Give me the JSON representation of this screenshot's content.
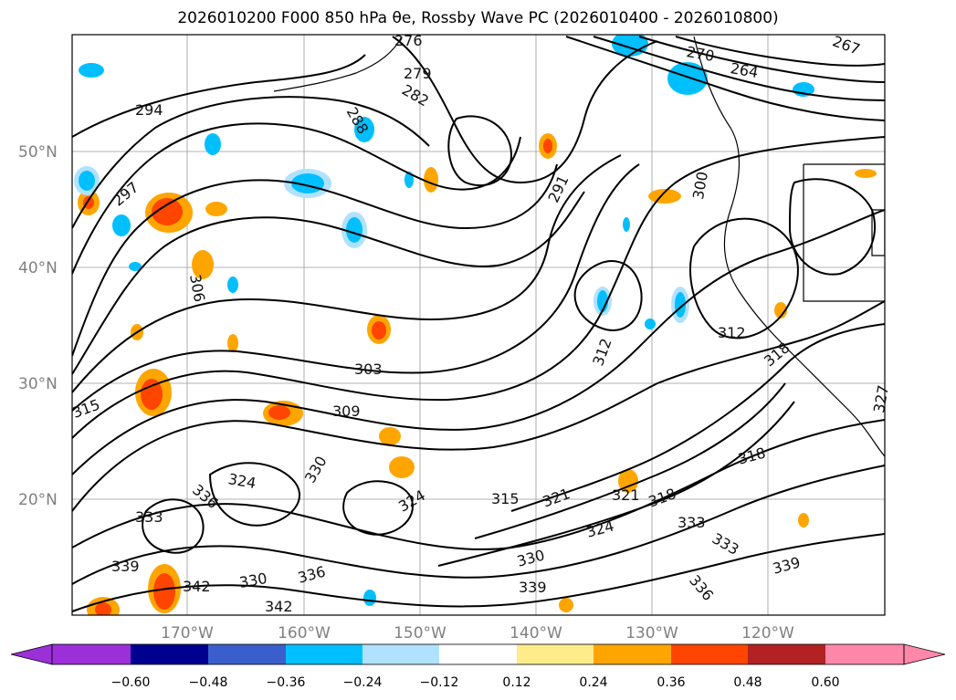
{
  "title": "2026010200 F000 850 hPa θe, Rossby Wave PC (2026010400 - 2026010800)",
  "lat_labels": [
    "50°N",
    "40°N",
    "30°N",
    "20°N"
  ],
  "lon_labels": [
    "170°W",
    "160°W",
    "150°W",
    "140°W",
    "130°W",
    "120°W"
  ],
  "colorbar": {
    "ticks": [
      "−0.60",
      "−0.48",
      "−0.36",
      "−0.24",
      "−0.12",
      "0.12",
      "0.24",
      "0.36",
      "0.48",
      "0.60"
    ],
    "colors": [
      "#9b30d8",
      "#000090",
      "#3a5fcd",
      "#00bfff",
      "#b0e2ff",
      "#ffffff",
      "#ffec8b",
      "#ffa500",
      "#ff4500",
      "#b22222",
      "#ff88aa"
    ]
  },
  "contour_labels": [
    "294",
    "297",
    "276",
    "279",
    "282",
    "288",
    "291",
    "300",
    "306",
    "303",
    "309",
    "312",
    "315",
    "318",
    "321",
    "324",
    "327",
    "330",
    "333",
    "336",
    "339",
    "342",
    "267",
    "264",
    "270"
  ]
}
